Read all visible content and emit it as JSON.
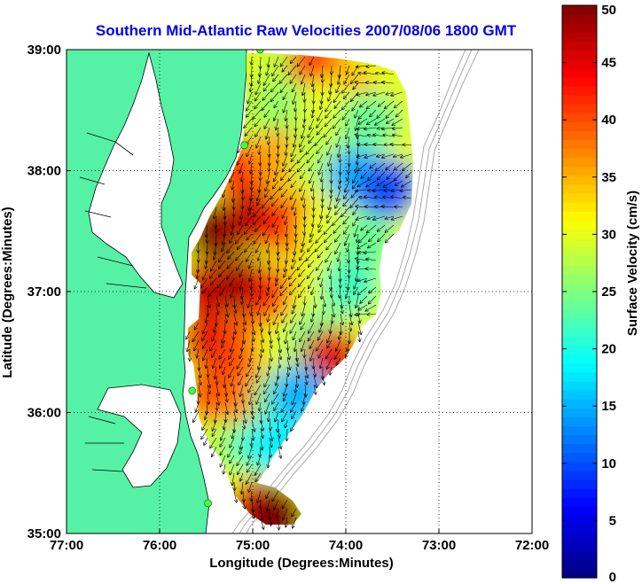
{
  "chart_data": {
    "type": "heatmap",
    "title": "Southern Mid-Atlantic Raw Velocities 2007/08/06 1800 GMT",
    "xlabel": "Longitude (Degrees:Minutes)",
    "ylabel": "Latitude (Degrees:Minutes)",
    "colorbar_label": "Surface Velocity (cm/s)",
    "x_ticks": [
      {
        "value": -77,
        "label": "77:00"
      },
      {
        "value": -76,
        "label": "76:00"
      },
      {
        "value": -75,
        "label": "75:00"
      },
      {
        "value": -74,
        "label": "74:00"
      },
      {
        "value": -73,
        "label": "73:00"
      },
      {
        "value": -72,
        "label": "72:00"
      }
    ],
    "y_ticks": [
      {
        "value": 35,
        "label": "35:00"
      },
      {
        "value": 36,
        "label": "36:00"
      },
      {
        "value": 37,
        "label": "37:00"
      },
      {
        "value": 38,
        "label": "38:00"
      },
      {
        "value": 39,
        "label": "39:00"
      }
    ],
    "colorbar_ticks": [
      "0",
      "5",
      "10",
      "15",
      "20",
      "25",
      "30",
      "35",
      "40",
      "45",
      "50"
    ],
    "xlim": [
      -77,
      -72
    ],
    "ylim": [
      35,
      39
    ],
    "clim": [
      0,
      50
    ],
    "colormap": "jet",
    "grid": true,
    "colors": {
      "land": "#55f2a5",
      "water": "#ffffff",
      "title": "#0000ee",
      "station": "#44ff44",
      "isobath": "#aaaaaa"
    },
    "stations": [
      {
        "lon": -74.92,
        "lat": 39.0
      },
      {
        "lon": -75.09,
        "lat": 38.21
      },
      {
        "lon": -75.65,
        "lat": 36.18
      },
      {
        "lon": -75.48,
        "lat": 35.25
      }
    ],
    "velocity_field": [
      {
        "lon": -75.0,
        "lat": 38.95,
        "speed": 30
      },
      {
        "lon": -74.6,
        "lat": 38.9,
        "speed": 28
      },
      {
        "lon": -74.3,
        "lat": 38.85,
        "speed": 42
      },
      {
        "lon": -74.0,
        "lat": 38.65,
        "speed": 35
      },
      {
        "lon": -75.0,
        "lat": 38.5,
        "speed": 28
      },
      {
        "lon": -74.6,
        "lat": 38.5,
        "speed": 26
      },
      {
        "lon": -74.2,
        "lat": 38.5,
        "speed": 30
      },
      {
        "lon": -73.75,
        "lat": 38.4,
        "speed": 24
      },
      {
        "lon": -75.1,
        "lat": 38.0,
        "speed": 42
      },
      {
        "lon": -74.7,
        "lat": 38.1,
        "speed": 36
      },
      {
        "lon": -74.3,
        "lat": 38.1,
        "speed": 28
      },
      {
        "lon": -73.9,
        "lat": 37.95,
        "speed": 15
      },
      {
        "lon": -73.55,
        "lat": 37.85,
        "speed": 10
      },
      {
        "lon": -75.4,
        "lat": 37.5,
        "speed": 50
      },
      {
        "lon": -75.0,
        "lat": 37.6,
        "speed": 47
      },
      {
        "lon": -74.6,
        "lat": 37.55,
        "speed": 42
      },
      {
        "lon": -74.2,
        "lat": 37.5,
        "speed": 30
      },
      {
        "lon": -73.8,
        "lat": 37.4,
        "speed": 24
      },
      {
        "lon": -75.5,
        "lat": 37.0,
        "speed": 46
      },
      {
        "lon": -75.1,
        "lat": 37.05,
        "speed": 48
      },
      {
        "lon": -74.7,
        "lat": 36.95,
        "speed": 42
      },
      {
        "lon": -74.3,
        "lat": 36.95,
        "speed": 30
      },
      {
        "lon": -73.95,
        "lat": 37.05,
        "speed": 22
      },
      {
        "lon": -75.45,
        "lat": 36.6,
        "speed": 45
      },
      {
        "lon": -75.05,
        "lat": 36.55,
        "speed": 40
      },
      {
        "lon": -74.65,
        "lat": 36.55,
        "speed": 30
      },
      {
        "lon": -74.3,
        "lat": 36.6,
        "speed": 24
      },
      {
        "lon": -74.15,
        "lat": 36.45,
        "speed": 45
      },
      {
        "lon": -75.4,
        "lat": 36.15,
        "speed": 40
      },
      {
        "lon": -75.05,
        "lat": 36.05,
        "speed": 38
      },
      {
        "lon": -74.7,
        "lat": 36.1,
        "speed": 25
      },
      {
        "lon": -74.5,
        "lat": 36.15,
        "speed": 15
      },
      {
        "lon": -75.3,
        "lat": 35.7,
        "speed": 28
      },
      {
        "lon": -74.95,
        "lat": 35.7,
        "speed": 22
      },
      {
        "lon": -74.7,
        "lat": 35.75,
        "speed": 18
      },
      {
        "lon": -75.15,
        "lat": 35.3,
        "speed": 30
      },
      {
        "lon": -74.95,
        "lat": 35.2,
        "speed": 45
      },
      {
        "lon": -74.75,
        "lat": 35.15,
        "speed": 50
      }
    ]
  }
}
